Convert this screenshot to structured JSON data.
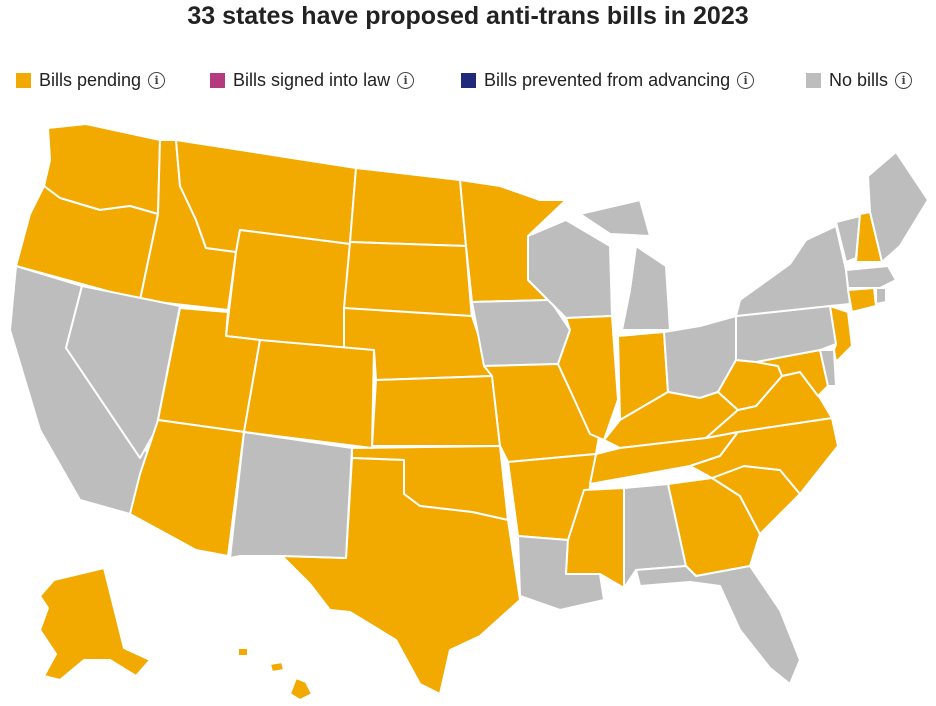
{
  "title": "33 states have proposed anti-trans bills in 2023",
  "legend": [
    {
      "label": "Bills pending",
      "color": "#f2a900",
      "status": "pending"
    },
    {
      "label": "Bills signed into law",
      "color": "#b5397f",
      "status": "signed"
    },
    {
      "label": "Bills prevented from advancing",
      "color": "#1f2a78",
      "status": "prevented"
    },
    {
      "label": "No bills",
      "color": "#bdbdbd",
      "status": "none"
    }
  ],
  "icons": {
    "legend_info": "info-icon"
  },
  "states": {
    "WA": "pending",
    "OR": "pending",
    "ID": "pending",
    "MT": "pending",
    "WY": "pending",
    "ND": "pending",
    "SD": "pending",
    "NE": "pending",
    "KS": "pending",
    "OK": "pending",
    "TX": "pending",
    "UT": "pending",
    "AZ": "pending",
    "CO": "pending",
    "MN": "pending",
    "MO": "pending",
    "AR": "pending",
    "MS": "pending",
    "IL": "pending",
    "IN": "pending",
    "KY": "pending",
    "TN": "pending",
    "GA": "pending",
    "SC": "pending",
    "NC": "pending",
    "VA": "pending",
    "WV": "pending",
    "MD": "pending",
    "NJ": "pending",
    "CT": "pending",
    "NH": "pending",
    "AK": "pending",
    "HI": "pending",
    "CA": "none",
    "NV": "none",
    "NM": "none",
    "IA": "none",
    "WI": "none",
    "MI": "none",
    "OH": "none",
    "PA": "none",
    "NY": "none",
    "VT": "none",
    "ME": "none",
    "MA": "none",
    "RI": "none",
    "DE": "none",
    "LA": "none",
    "AL": "none",
    "FL": "none"
  }
}
